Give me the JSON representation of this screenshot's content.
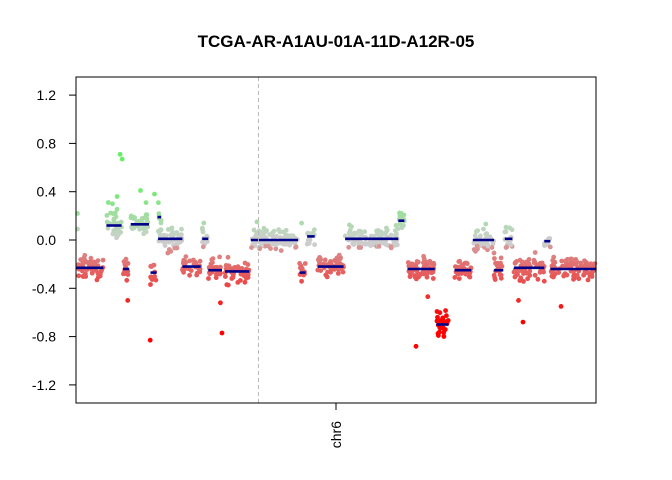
{
  "chart_data": {
    "type": "scatter",
    "title": "TCGA-AR-A1AU-01A-11D-A12R-05",
    "xlabel": "",
    "ylabel": "",
    "x_tick_labels": [
      "chr6"
    ],
    "y_ticks": [
      1.2,
      0.8,
      0.4,
      0.0,
      -0.4,
      -0.8,
      -1.2
    ],
    "y_tick_labels": [
      "1.2",
      "0.8",
      "0.4",
      "0.0",
      "-0.4",
      "-0.8",
      "-1.2"
    ],
    "ylim": [
      -1.35,
      1.35
    ],
    "xlim": [
      0,
      171
    ],
    "centromere_position": 60,
    "x_units": "Mb",
    "grid": false,
    "colors": {
      "gain": "#66ee66",
      "neutral": "#cccccc",
      "loss": "#e06060",
      "deep_loss": "#ff0000",
      "segment": "#00008b"
    },
    "segments": [
      {
        "start": 0,
        "end": 9,
        "value": -0.23
      },
      {
        "start": 10,
        "end": 15,
        "value": 0.12
      },
      {
        "start": 15.5,
        "end": 17.5,
        "value": -0.24
      },
      {
        "start": 18,
        "end": 24,
        "value": 0.13
      },
      {
        "start": 24.5,
        "end": 26.5,
        "value": -0.27
      },
      {
        "start": 26.8,
        "end": 28,
        "value": 0.19
      },
      {
        "start": 27,
        "end": 35,
        "value": 0.01
      },
      {
        "start": 35,
        "end": 41,
        "value": -0.22
      },
      {
        "start": 41.5,
        "end": 43.5,
        "value": 0.01
      },
      {
        "start": 43.5,
        "end": 48,
        "value": -0.25
      },
      {
        "start": 49,
        "end": 57,
        "value": -0.26
      },
      {
        "start": 57.5,
        "end": 73,
        "value": 0.0
      },
      {
        "start": 73.5,
        "end": 75.5,
        "value": -0.27
      },
      {
        "start": 76,
        "end": 78.5,
        "value": 0.03
      },
      {
        "start": 79.5,
        "end": 88,
        "value": -0.22
      },
      {
        "start": 88.5,
        "end": 106,
        "value": 0.01
      },
      {
        "start": 106,
        "end": 108,
        "value": 0.16
      },
      {
        "start": 109,
        "end": 118,
        "value": -0.24
      },
      {
        "start": 118.5,
        "end": 122.5,
        "value": -0.7
      },
      {
        "start": 124.5,
        "end": 130,
        "value": -0.25
      },
      {
        "start": 130.5,
        "end": 137.5,
        "value": 0.0
      },
      {
        "start": 137.5,
        "end": 140.5,
        "value": -0.25
      },
      {
        "start": 141,
        "end": 143.5,
        "value": 0.01
      },
      {
        "start": 144,
        "end": 154,
        "value": -0.23
      },
      {
        "start": 154,
        "end": 156,
        "value": -0.01
      },
      {
        "start": 156,
        "end": 171,
        "value": -0.24
      }
    ],
    "outliers": [
      {
        "x": 0.5,
        "y": 0.22
      },
      {
        "x": 0.5,
        "y": 0.09
      },
      {
        "x": 14.5,
        "y": 0.71
      },
      {
        "x": 15.2,
        "y": 0.67
      },
      {
        "x": 12,
        "y": 0.3
      },
      {
        "x": 13.5,
        "y": 0.36
      },
      {
        "x": 17,
        "y": -0.5
      },
      {
        "x": 21.2,
        "y": 0.41
      },
      {
        "x": 24.4,
        "y": -0.83
      },
      {
        "x": 25.8,
        "y": 0.38
      },
      {
        "x": 47.5,
        "y": -0.52
      },
      {
        "x": 48,
        "y": -0.77
      },
      {
        "x": 111.8,
        "y": -0.88
      },
      {
        "x": 115.7,
        "y": -0.47
      },
      {
        "x": 145.5,
        "y": -0.5
      },
      {
        "x": 147,
        "y": -0.68
      },
      {
        "x": 159.5,
        "y": -0.55
      },
      {
        "x": 59.5,
        "y": 0.15
      },
      {
        "x": 74.2,
        "y": 0.14
      },
      {
        "x": 107,
        "y": 0.22
      }
    ]
  }
}
